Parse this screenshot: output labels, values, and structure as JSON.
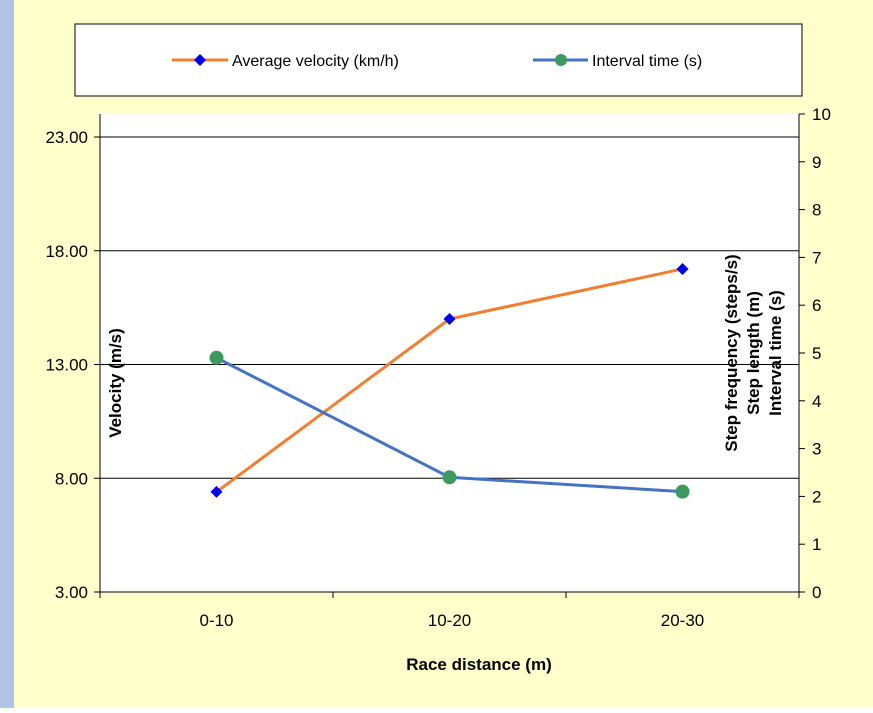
{
  "colors": {
    "background": "#FFFFCC",
    "left_strip": "#AFC4E4",
    "velocity_line": "#F08030",
    "velocity_marker": "#0000EE",
    "interval_line": "#4472C4",
    "interval_marker": "#3C9A5F",
    "gridline": "#000000"
  },
  "chart_data": {
    "type": "line",
    "title": "",
    "xlabel": "Race distance (m)",
    "ylabel": "Velocity (m/s)",
    "ylabel_right": [
      "Step frequency (steps/s)",
      "Step length (m)",
      "Interval time (s)"
    ],
    "categories": [
      "0-10",
      "10-20",
      "20-30"
    ],
    "y_left": {
      "range": [
        3.0,
        23.0
      ],
      "ticks": [
        "3.00",
        "8.00",
        "13.00",
        "18.00",
        "23.00"
      ],
      "tick_values": [
        3,
        8,
        13,
        18,
        23
      ],
      "gridlines": true
    },
    "y_right": {
      "range": [
        0,
        10
      ],
      "ticks": [
        "0",
        "1",
        "2",
        "3",
        "4",
        "5",
        "6",
        "7",
        "8",
        "9",
        "10"
      ],
      "tick_values": [
        0,
        1,
        2,
        3,
        4,
        5,
        6,
        7,
        8,
        9,
        10
      ]
    },
    "legend_position": "top",
    "series": [
      {
        "name": "Average velocity (km/h)",
        "axis": "left",
        "marker": "diamond",
        "values": [
          7.4,
          15.0,
          17.2
        ]
      },
      {
        "name": "Interval time (s)",
        "axis": "right",
        "marker": "circle",
        "values": [
          4.9,
          2.4,
          2.1
        ]
      }
    ]
  }
}
